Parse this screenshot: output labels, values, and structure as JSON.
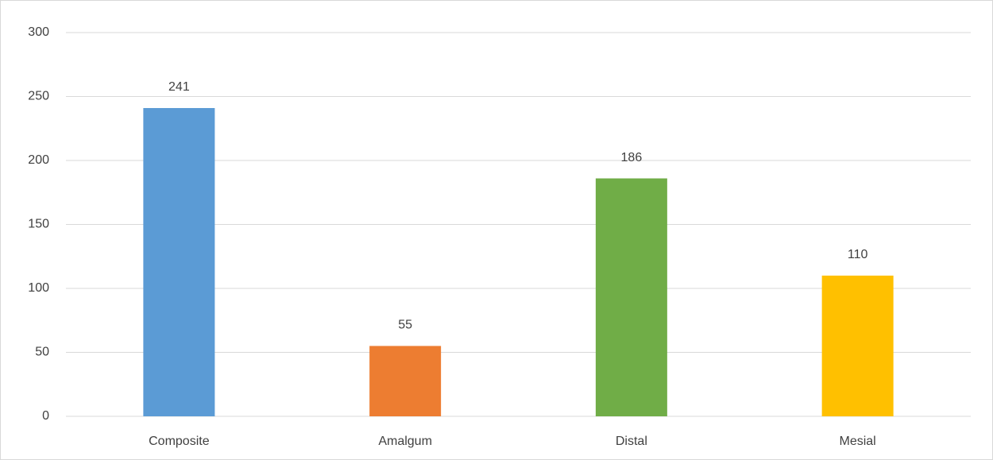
{
  "chart_data": {
    "type": "bar",
    "categories": [
      "Composite",
      "Amalgum",
      "Distal",
      "Mesial"
    ],
    "values": [
      241,
      55,
      186,
      110
    ],
    "colors": [
      "#5b9bd5",
      "#ed7d31",
      "#70ad47",
      "#ffc000"
    ],
    "ylim": [
      0,
      300
    ],
    "yticks": [
      0,
      50,
      100,
      150,
      200,
      250,
      300
    ],
    "grid": true
  }
}
